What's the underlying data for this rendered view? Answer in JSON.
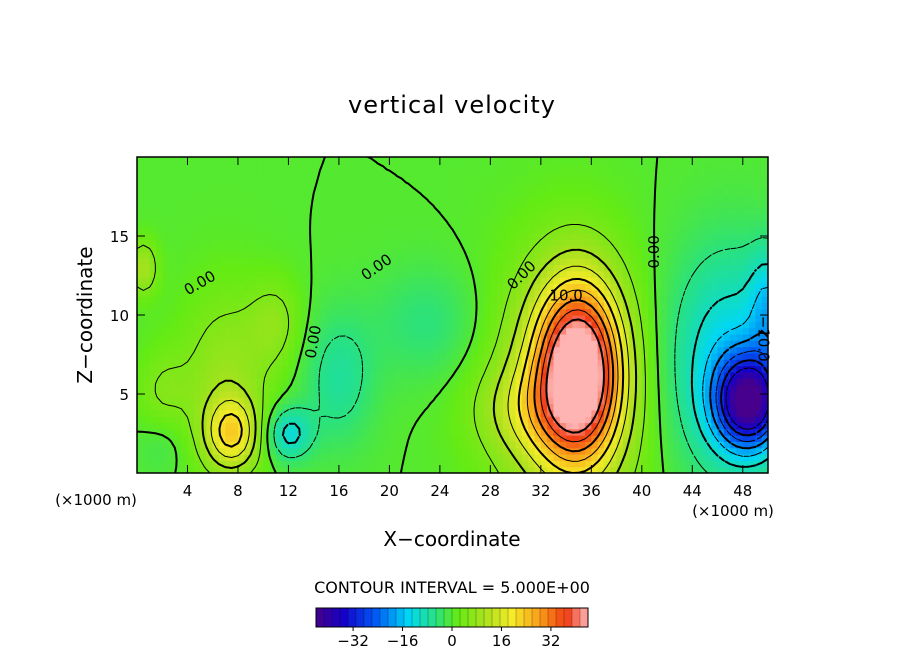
{
  "chart_data": {
    "type": "heatmap",
    "title": "vertical velocity",
    "xlabel": "X−coordinate",
    "ylabel": "Z−coordinate",
    "x_unit_left": "(×1000 m)",
    "x_unit_right": "(×1000 m)",
    "xlim": [
      0,
      50
    ],
    "ylim": [
      0,
      20
    ],
    "x_ticks": [
      4,
      8,
      12,
      16,
      20,
      24,
      28,
      32,
      36,
      40,
      44,
      48
    ],
    "y_ticks": [
      5,
      10,
      15
    ],
    "contour_interval_text": "CONTOUR INTERVAL = 5.000E+00",
    "contour_labels": [
      {
        "text": "0.00",
        "x": 5.0,
        "y": 12.0,
        "angle": -30
      },
      {
        "text": "0.00",
        "x": 14.0,
        "y": 8.3,
        "angle": -80
      },
      {
        "text": "0.00",
        "x": 19.0,
        "y": 13.0,
        "angle": -35
      },
      {
        "text": "0.00",
        "x": 30.5,
        "y": 12.5,
        "angle": -45
      },
      {
        "text": "10.0",
        "x": 34.0,
        "y": 11.2,
        "angle": 0
      },
      {
        "text": "0.00",
        "x": 41.0,
        "y": 14.0,
        "angle": -90
      },
      {
        "text": "−10.0",
        "x": 49.6,
        "y": 8.5,
        "angle": 90
      }
    ],
    "features": [
      {
        "x": 35.0,
        "z": 6.5,
        "w": 43,
        "sx": 2.3,
        "sz": 3.8
      },
      {
        "x": 34.0,
        "z": 5.0,
        "w": 14,
        "sx": 4.0,
        "sz": 6.0
      },
      {
        "x": 31.0,
        "z": 4.0,
        "w": 7,
        "sx": 3.0,
        "sz": 2.0
      },
      {
        "x": 7.5,
        "z": 2.5,
        "w": 18,
        "sx": 1.5,
        "sz": 1.6
      },
      {
        "x": 7.0,
        "z": 6.0,
        "w": 8,
        "sx": 2.5,
        "sz": 4.0
      },
      {
        "x": 11.0,
        "z": 9.5,
        "w": 6,
        "sx": 1.5,
        "sz": 2.0
      },
      {
        "x": 2.0,
        "z": 5.0,
        "w": 5,
        "sx": 1.5,
        "sz": 2.0
      },
      {
        "x": 0.5,
        "z": 13.0,
        "w": 10,
        "sx": 0.8,
        "sz": 1.2
      },
      {
        "x": 48.5,
        "z": 4.5,
        "w": -38,
        "sx": 1.8,
        "sz": 2.0
      },
      {
        "x": 47.0,
        "z": 7.0,
        "w": -14,
        "sx": 3.5,
        "sz": 5.0
      },
      {
        "x": 50.0,
        "z": 10.5,
        "w": -10,
        "sx": 1.0,
        "sz": 2.5
      },
      {
        "x": 12.0,
        "z": 2.5,
        "w": -12,
        "sx": 1.3,
        "sz": 1.2
      },
      {
        "x": 16.0,
        "z": 6.0,
        "w": -7,
        "sx": 2.0,
        "sz": 3.0
      },
      {
        "x": 23.0,
        "z": 9.5,
        "w": -5,
        "sx": 3.0,
        "sz": 2.5
      },
      {
        "x": 2.0,
        "z": 2.0,
        "w": -3,
        "sx": 1.5,
        "sz": 1.5
      }
    ],
    "colorbar": {
      "vmin": -44,
      "vmax": 44,
      "tick_values": [
        -32,
        -16,
        0,
        16,
        32
      ],
      "tick_labels": [
        "−32",
        "−16",
        "0",
        "16",
        "32"
      ]
    }
  }
}
